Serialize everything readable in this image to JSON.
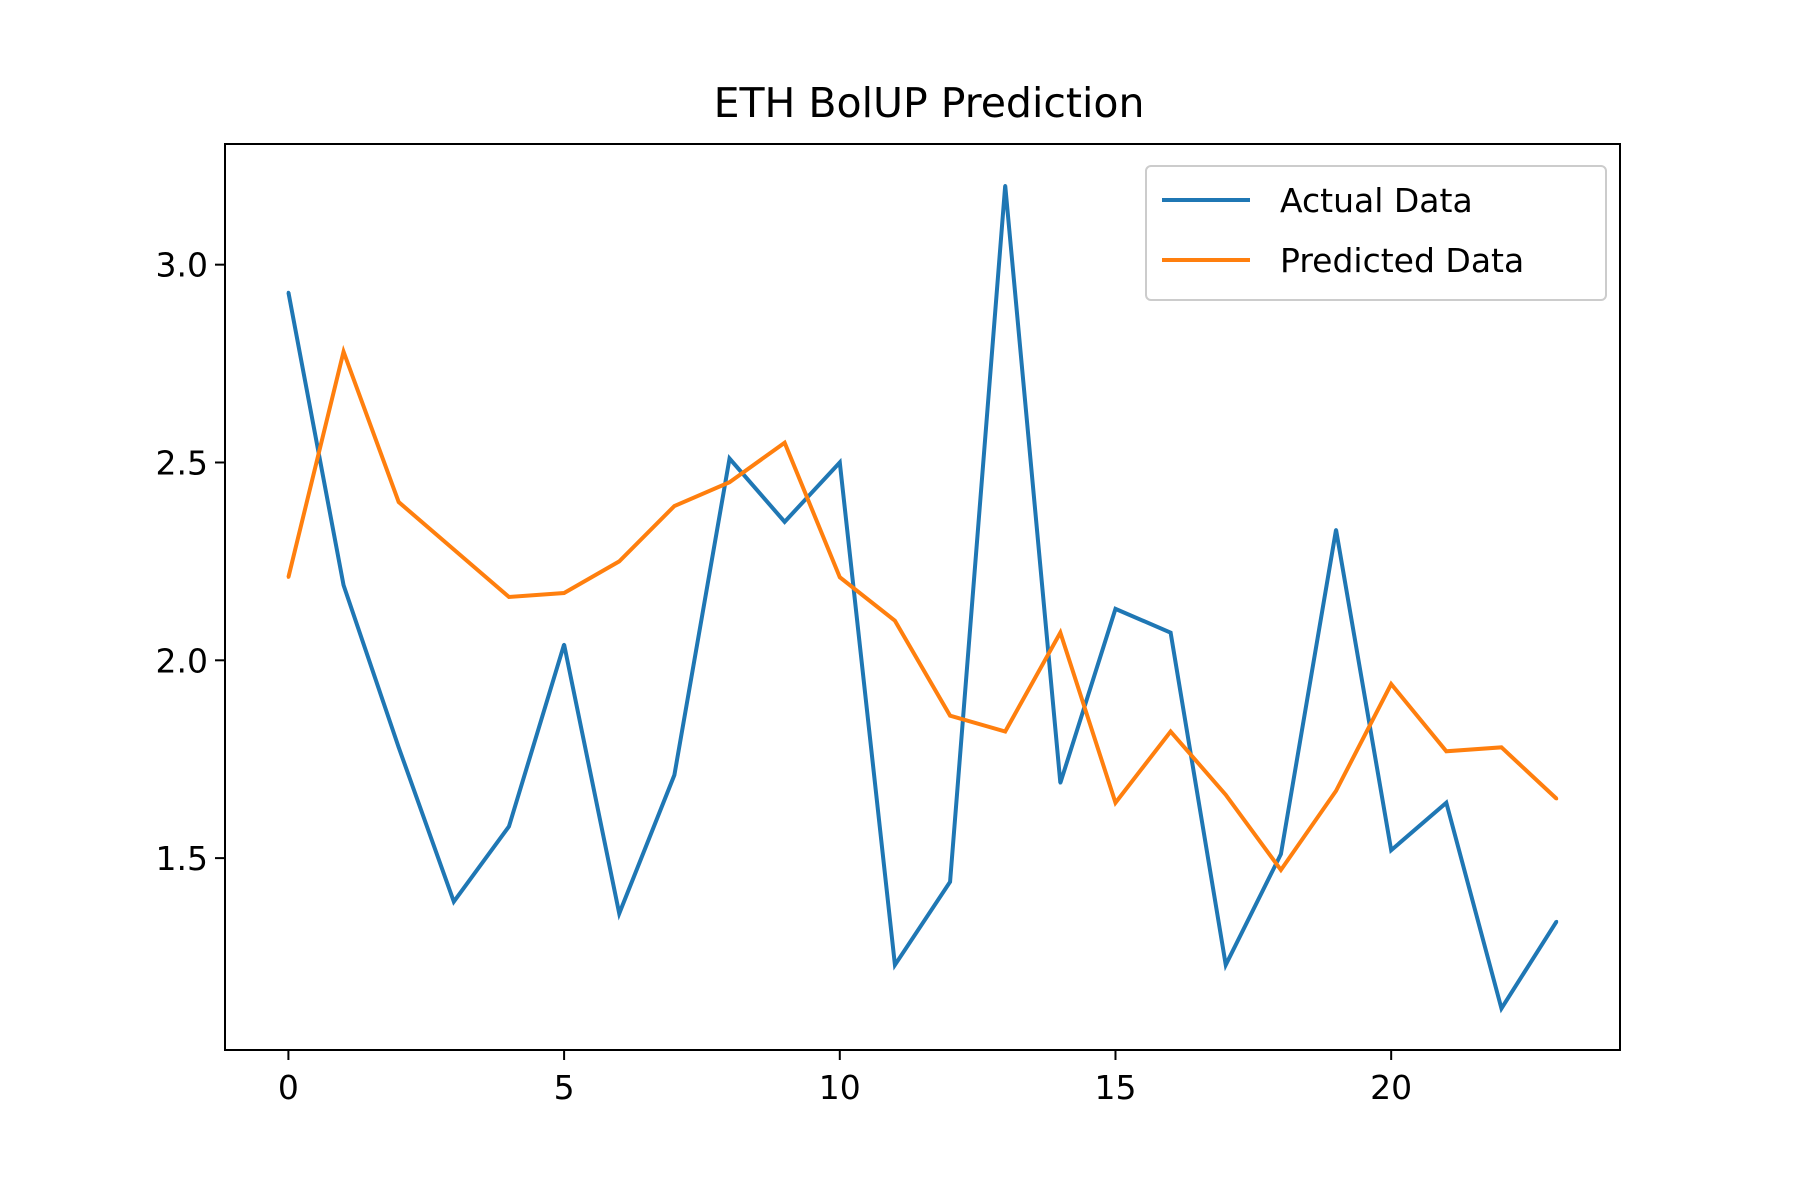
{
  "chart_data": {
    "type": "line",
    "title": "ETH BolUP Prediction",
    "xlabel": "",
    "ylabel": "",
    "xlim": [
      -1.15,
      24.15
    ],
    "ylim": [
      1.015,
      3.305
    ],
    "x": [
      0,
      1,
      2,
      3,
      4,
      5,
      6,
      7,
      8,
      9,
      10,
      11,
      12,
      13,
      14,
      15,
      16,
      17,
      18,
      19,
      20,
      21,
      22,
      23
    ],
    "xticks": [
      0,
      5,
      10,
      15,
      20
    ],
    "xtick_labels": [
      "0",
      "5",
      "10",
      "15",
      "20"
    ],
    "yticks": [
      1.5,
      2.0,
      2.5,
      3.0
    ],
    "ytick_labels": [
      "1.5",
      "2.0",
      "2.5",
      "3.0"
    ],
    "grid": false,
    "legend_position": "upper right",
    "series": [
      {
        "name": "Actual Data",
        "color": "#1f77b4",
        "values": [
          2.93,
          2.19,
          1.78,
          1.39,
          1.58,
          2.04,
          1.36,
          1.71,
          2.51,
          2.35,
          2.5,
          1.23,
          1.44,
          3.2,
          1.69,
          2.13,
          2.07,
          1.23,
          1.51,
          2.33,
          1.52,
          1.64,
          1.12,
          1.34
        ]
      },
      {
        "name": "Predicted Data",
        "color": "#ff7f0e",
        "values": [
          2.21,
          2.78,
          2.4,
          2.28,
          2.16,
          2.17,
          2.25,
          2.39,
          2.45,
          2.55,
          2.21,
          2.1,
          1.86,
          1.82,
          2.07,
          1.64,
          1.82,
          1.66,
          1.47,
          1.67,
          1.94,
          1.77,
          1.78,
          1.65
        ]
      }
    ]
  }
}
